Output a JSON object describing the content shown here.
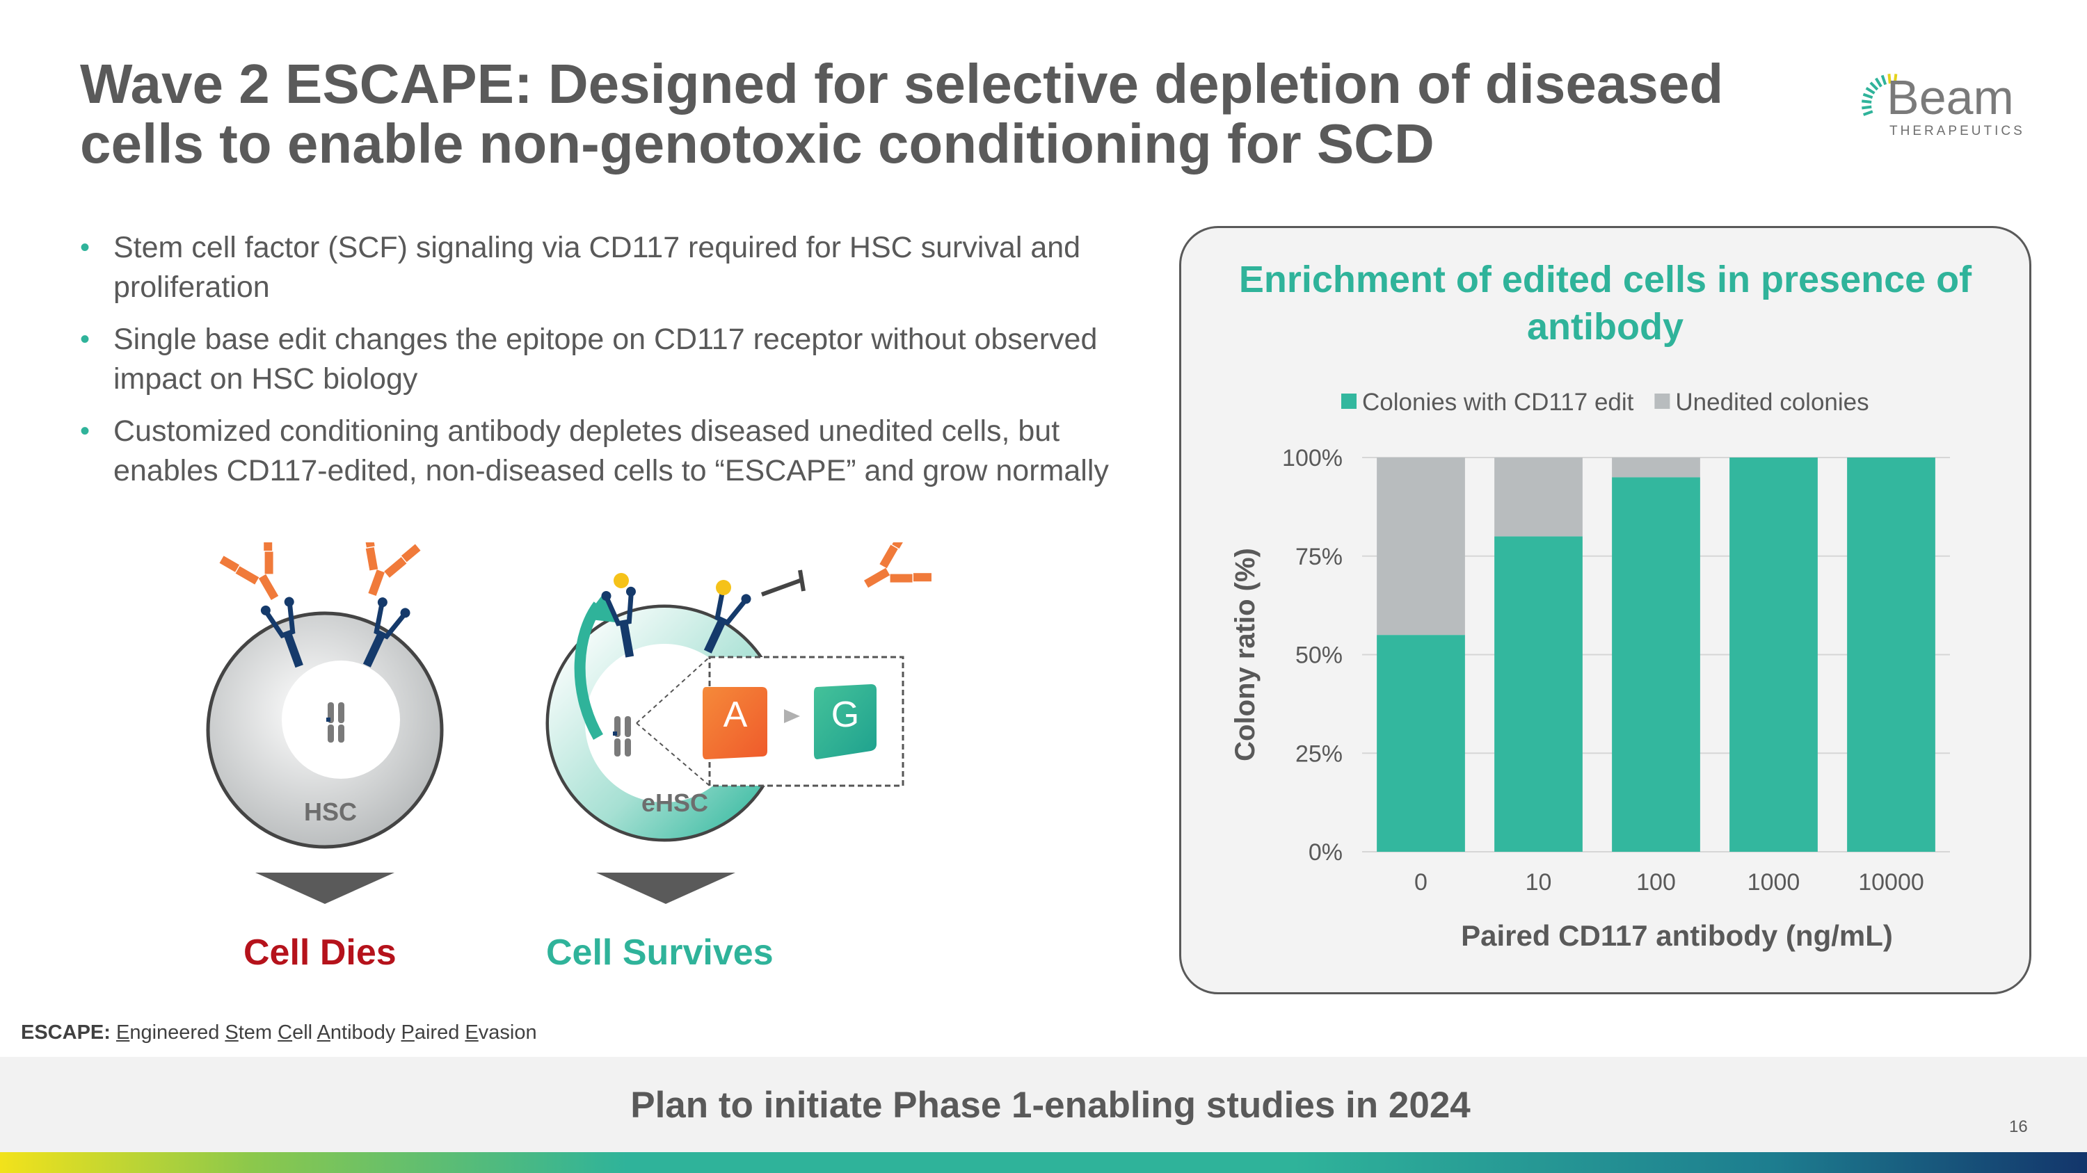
{
  "title": "Wave 2 ESCAPE: Designed for selective depletion of diseased cells to enable non-genotoxic conditioning for SCD",
  "logo": {
    "word": "Beam",
    "sub": "THERAPEUTICS"
  },
  "bullets": [
    "Stem cell factor (SCF) signaling via CD117 required for HSC survival and proliferation",
    "Single base edit changes the epitope on CD117 receptor without observed impact on HSC biology",
    "Customized conditioning antibody depletes diseased unedited cells, but enables CD117-edited, non-diseased cells to “ESCAPE” and grow normally"
  ],
  "diagram": {
    "hsc_label": "HSC",
    "ehsc_label": "eHSC",
    "base_from": "A",
    "base_to": "G",
    "outcome_left": "Cell Dies",
    "outcome_right": "Cell Survives"
  },
  "escape_note": {
    "label": "ESCAPE:",
    "words": [
      {
        "initial": "E",
        "rest": "ngineered"
      },
      {
        "initial": "S",
        "rest": "tem"
      },
      {
        "initial": "C",
        "rest": "ell"
      },
      {
        "initial": "A",
        "rest": "ntibody"
      },
      {
        "initial": "P",
        "rest": "aired"
      },
      {
        "initial": "E",
        "rest": "vasion"
      }
    ]
  },
  "colors": {
    "teal": "#33b79e",
    "gray": "#b8bcbe",
    "red": "#b5121b",
    "orange": "#f07a3a",
    "navy": "#153a6b"
  },
  "chart_data": {
    "type": "bar",
    "stacked": true,
    "title": "Enrichment of edited cells in presence of antibody",
    "xlabel": "Paired CD117 antibody (ng/mL)",
    "ylabel": "Colony ratio (%)",
    "categories": [
      "0",
      "10",
      "100",
      "1000",
      "10000"
    ],
    "series": [
      {
        "name": "Colonies with CD117 edit",
        "values": [
          55,
          80,
          95,
          100,
          100
        ],
        "color": "#33b79e"
      },
      {
        "name": "Unedited colonies",
        "values": [
          45,
          20,
          5,
          0,
          0
        ],
        "color": "#b8bcbe"
      }
    ],
    "ylim": [
      0,
      100
    ],
    "yticks": [
      "0%",
      "25%",
      "50%",
      "75%",
      "100%"
    ],
    "grid": true,
    "legend": "top"
  },
  "footer": {
    "text": "Plan to initiate Phase 1-enabling studies in 2024",
    "page": "16"
  }
}
